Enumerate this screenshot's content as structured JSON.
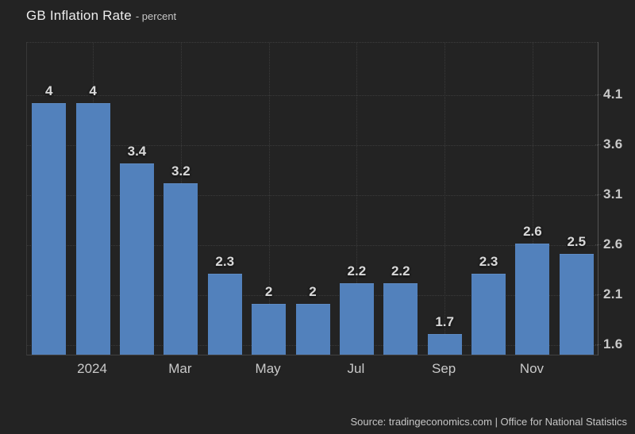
{
  "title": {
    "main": "GB Inflation Rate",
    "unit": "- percent"
  },
  "source": "Source: tradingeconomics.com | Office for National Statistics",
  "colors": {
    "background": "#232323",
    "bar": "#5281bc",
    "grid": "#3b3b3b",
    "axis": "#535353",
    "tick_text": "#c9c9c9",
    "value_label_text": "#d9d9d9",
    "title_text": "#ededed"
  },
  "chart_data": {
    "type": "bar",
    "title": "GB Inflation Rate",
    "subtitle": "- percent",
    "values": [
      4,
      4,
      3.4,
      3.2,
      2.3,
      2,
      2,
      2.2,
      2.2,
      1.7,
      2.3,
      2.6,
      2.5
    ],
    "bar_value_labels": [
      "4",
      "4",
      "3.4",
      "3.2",
      "2.3",
      "2",
      "2",
      "2.2",
      "2.2",
      "1.7",
      "2.3",
      "2.6",
      "2.5"
    ],
    "x_axis": {
      "tick_labels": [
        "2024",
        "Mar",
        "May",
        "Jul",
        "Sep",
        "Nov"
      ],
      "tick_bar_indices": [
        1,
        3,
        5,
        7,
        9,
        11
      ]
    },
    "y_axis": {
      "side": "right",
      "tick_labels": [
        "4.1",
        "3.6",
        "3.1",
        "2.6",
        "2.1",
        "1.6"
      ],
      "tick_values": [
        4.1,
        3.6,
        3.1,
        2.6,
        2.1,
        1.6
      ]
    },
    "ylim": [
      1.49,
      4.62
    ],
    "grid": "dotted",
    "legend": null
  }
}
